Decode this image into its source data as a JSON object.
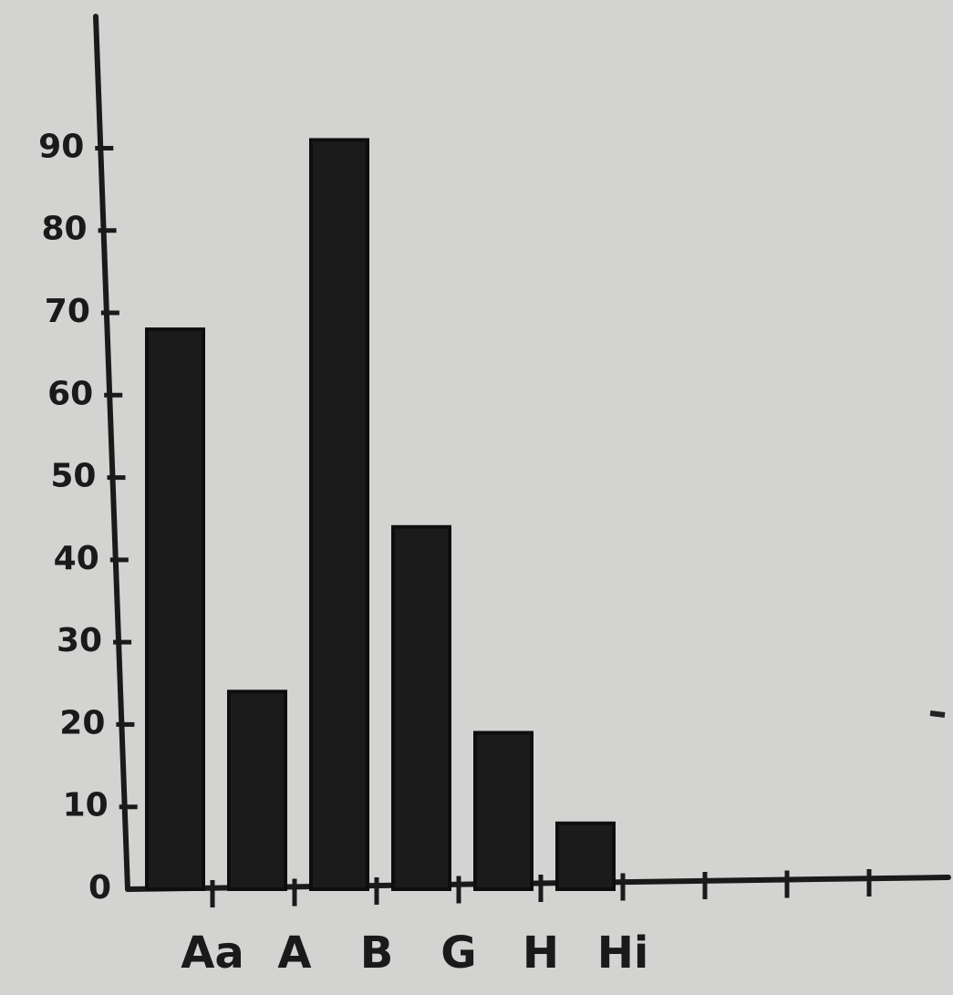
{
  "chart_data": {
    "type": "bar",
    "categories": [
      "Aa",
      "A",
      "B",
      "G",
      "H",
      "Hi",
      null,
      null,
      null
    ],
    "values": [
      68,
      24,
      91,
      44,
      19,
      8,
      null,
      null,
      null
    ],
    "color": "#1b1b1b",
    "ylim": [
      0,
      106
    ],
    "yticks": [
      0,
      10,
      20,
      30,
      40,
      50,
      60,
      70,
      80,
      90
    ],
    "grid": false
  }
}
